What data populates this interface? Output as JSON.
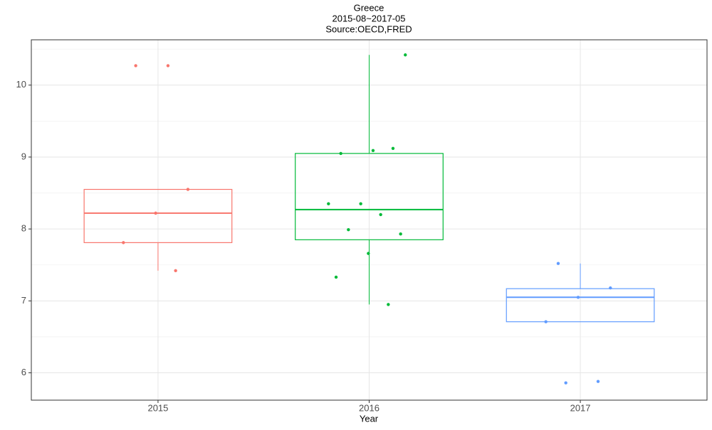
{
  "chart_data": {
    "type": "box",
    "title": "Greece",
    "subtitle": "2015-08~2017-05",
    "source": "Source:OECD,FRED",
    "x_label": "Year",
    "categories": [
      "2015",
      "2016",
      "2017"
    ],
    "boxes": [
      {
        "color": "#F8766D",
        "whisker_low": 7.42,
        "q1": 7.81,
        "median": 8.22,
        "q3": 8.55,
        "whisker_high": 8.55,
        "points": [
          10.27,
          10.27,
          8.55,
          8.22,
          7.81,
          7.42
        ]
      },
      {
        "color": "#00BA38",
        "whisker_low": 6.95,
        "q1": 7.85,
        "median": 8.27,
        "q3": 9.05,
        "whisker_high": 10.42,
        "points": [
          10.42,
          9.09,
          9.05,
          9.12,
          8.35,
          8.35,
          8.2,
          7.99,
          7.93,
          7.66,
          7.33,
          6.95
        ]
      },
      {
        "color": "#619CFF",
        "whisker_low": 6.71,
        "q1": 6.71,
        "median": 7.05,
        "q3": 7.17,
        "whisker_high": 7.52,
        "points": [
          7.52,
          7.18,
          7.05,
          6.71,
          5.88,
          5.86
        ]
      }
    ],
    "ylim": [
      5.62,
      10.63
    ],
    "yticks": [
      6,
      7,
      8,
      9,
      10
    ],
    "yminorticks": [
      6.5,
      7.5,
      8.5,
      9.5,
      10.5
    ],
    "grid": true
  }
}
